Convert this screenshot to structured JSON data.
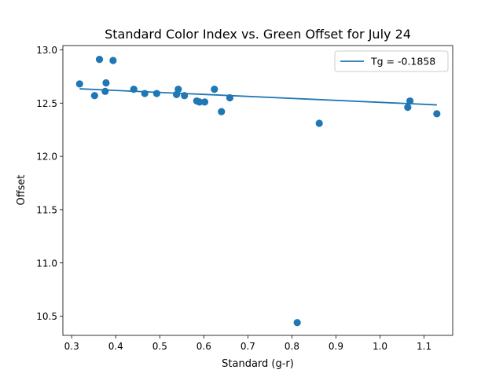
{
  "chart_data": {
    "type": "scatter",
    "title": "Standard Color Index vs. Green Offset for July 24",
    "xlabel": "Standard (g-r)",
    "ylabel": "Offset",
    "xlim": [
      0.28,
      1.165
    ],
    "ylim": [
      10.32,
      13.04
    ],
    "xticks": [
      "0.3",
      "0.4",
      "0.5",
      "0.6",
      "0.7",
      "0.8",
      "0.9",
      "1.0",
      "1.1"
    ],
    "yticks": [
      "10.5",
      "11.0",
      "11.5",
      "12.0",
      "12.5",
      "13.0"
    ],
    "grid": false,
    "legend_position": "top-right",
    "colors": {
      "series": "#1f77b4"
    },
    "series": [
      {
        "type": "scatter",
        "x": [
          0.318,
          0.352,
          0.363,
          0.376,
          0.378,
          0.394,
          0.441,
          0.466,
          0.493,
          0.538,
          0.542,
          0.556,
          0.584,
          0.59,
          0.602,
          0.624,
          0.64,
          0.659,
          0.862,
          0.812,
          1.063,
          1.068,
          1.129
        ],
        "y": [
          12.68,
          12.57,
          12.91,
          12.61,
          12.69,
          12.9,
          12.63,
          12.59,
          12.59,
          12.58,
          12.63,
          12.57,
          12.52,
          12.51,
          12.51,
          12.63,
          12.42,
          12.55,
          12.31,
          10.44,
          12.46,
          12.52,
          12.4
        ]
      },
      {
        "type": "line",
        "name": "Tg = -0.1858",
        "slope": -0.1858,
        "x": [
          0.318,
          1.129
        ],
        "y": [
          12.634,
          12.483
        ]
      }
    ]
  }
}
